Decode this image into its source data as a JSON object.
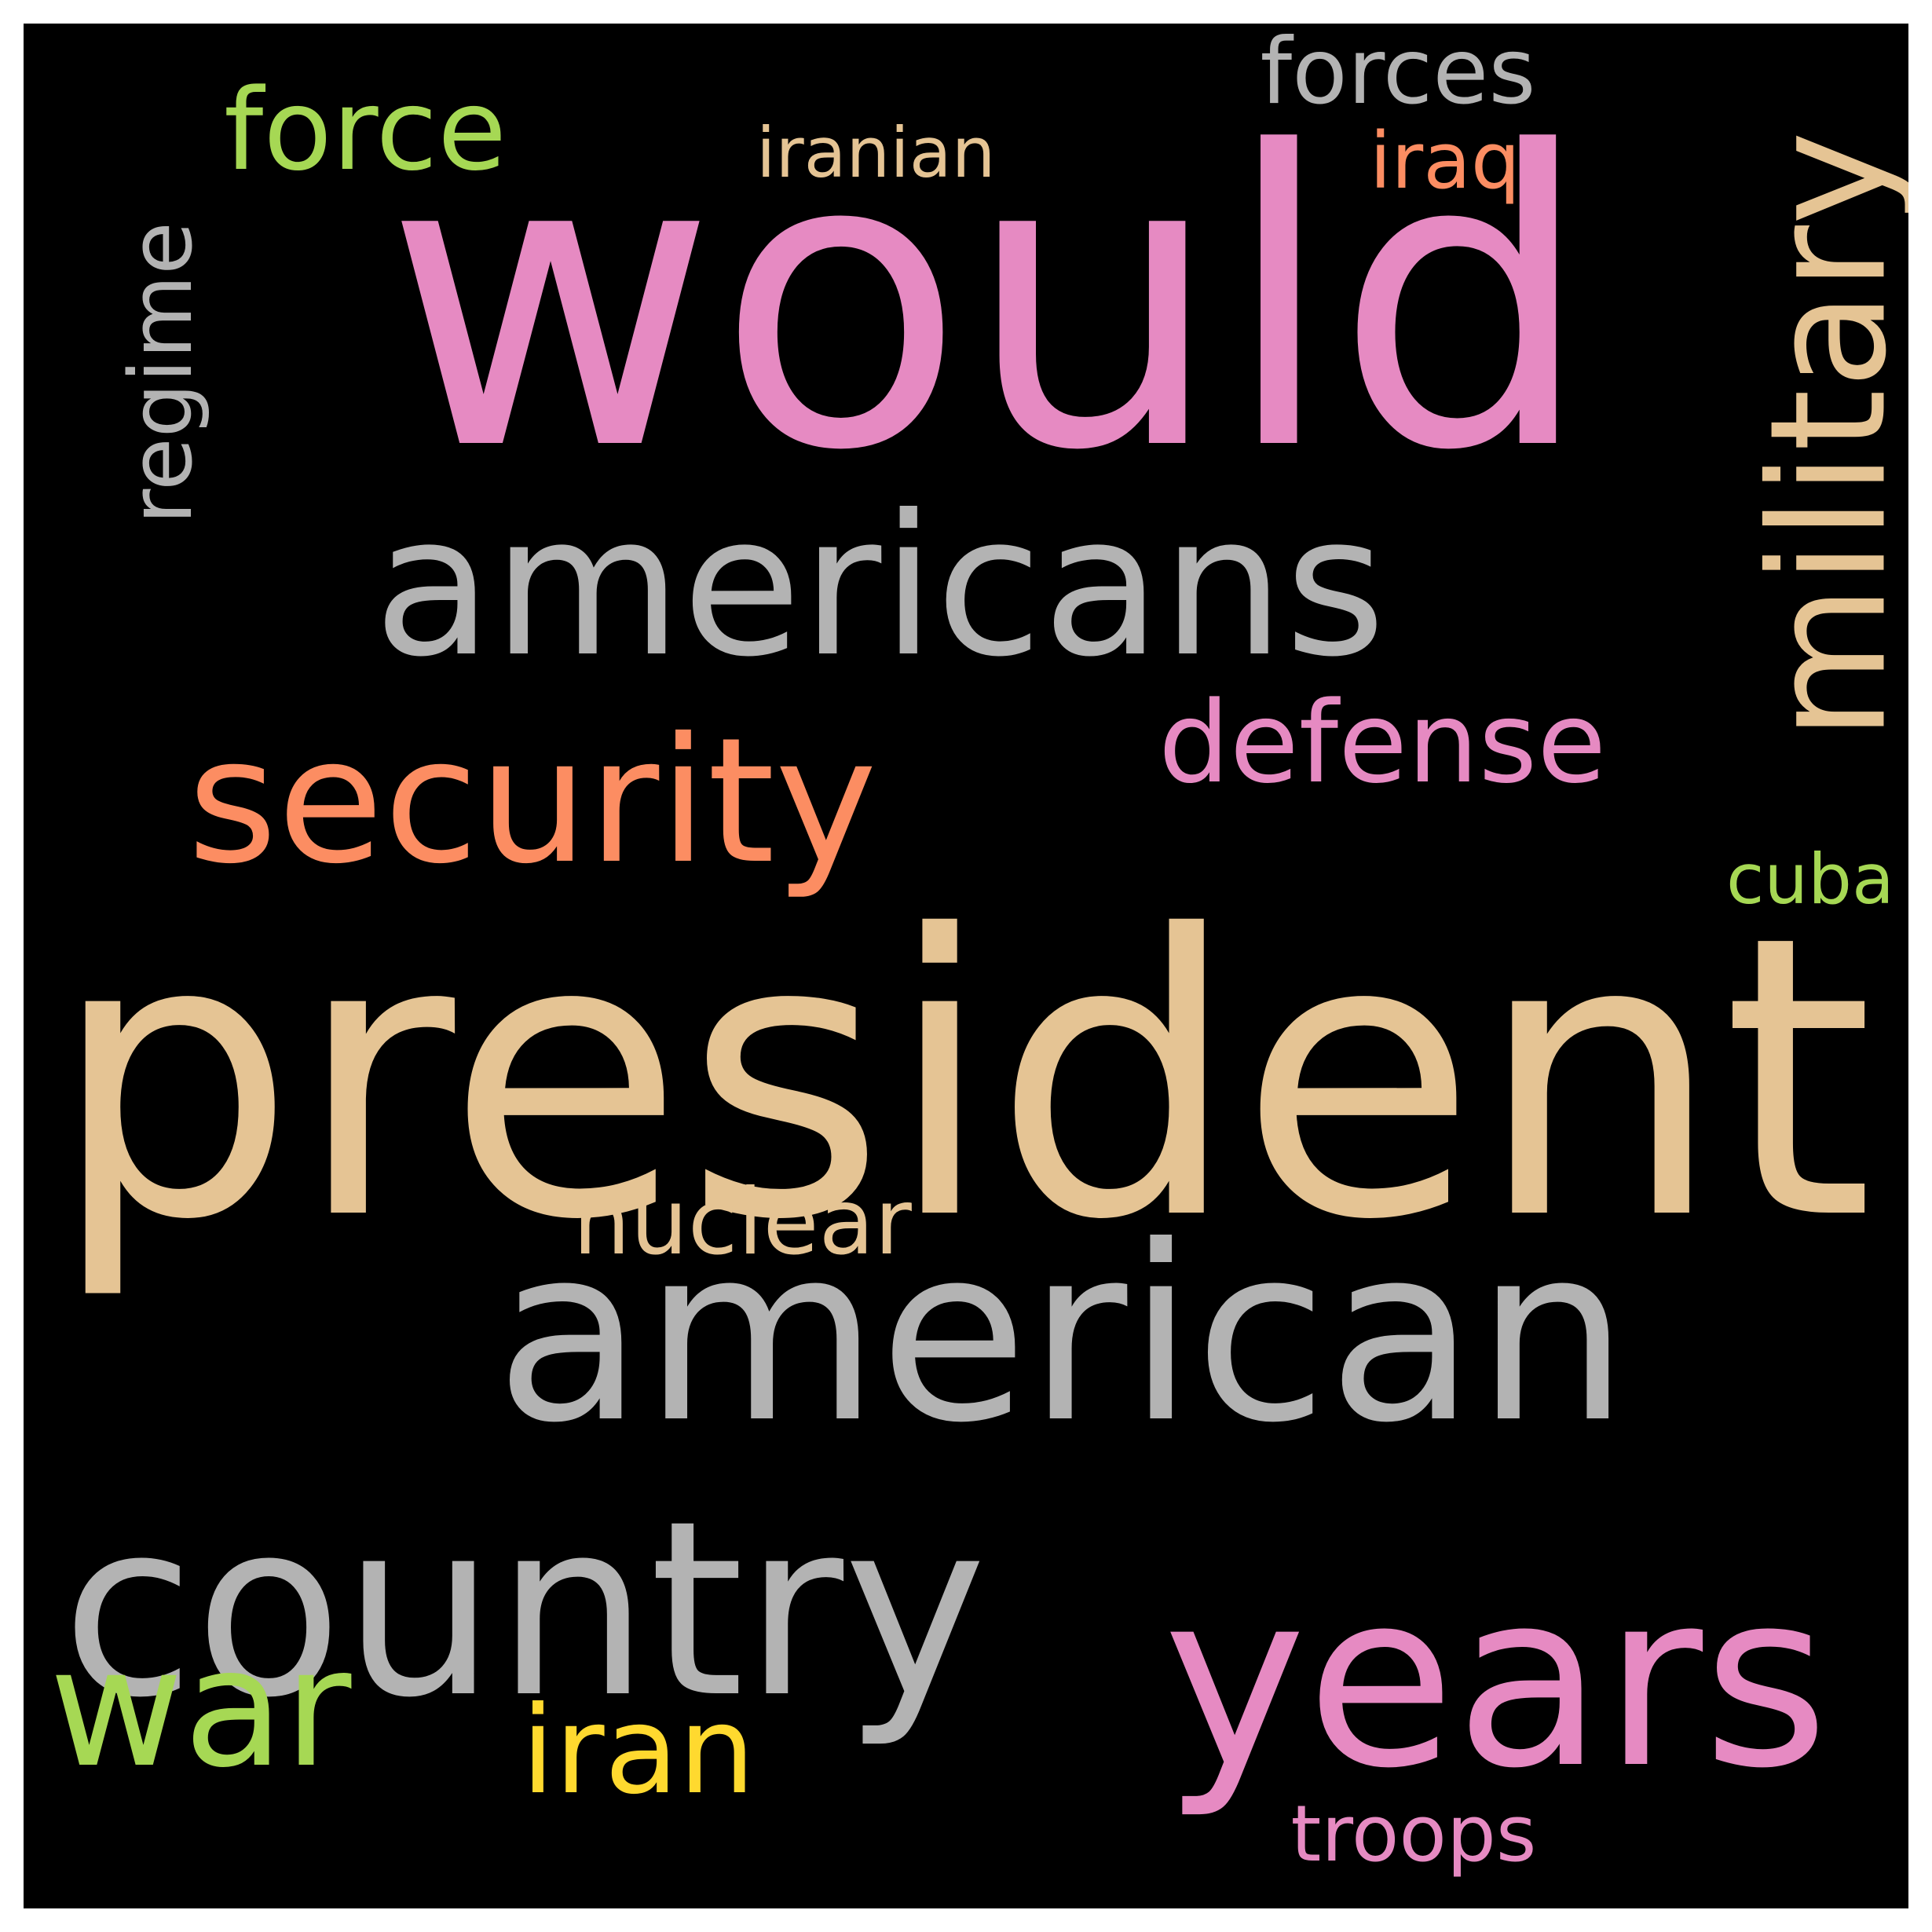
{
  "background_color": "#000000",
  "words": [
    {
      "key": "would",
      "text": "would",
      "color": "#E68AC2"
    },
    {
      "key": "president",
      "text": "president",
      "color": "#E5C494"
    },
    {
      "key": "americans",
      "text": "americans",
      "color": "#B3B3B3"
    },
    {
      "key": "american",
      "text": "american",
      "color": "#B3B3B3"
    },
    {
      "key": "country",
      "text": "country",
      "color": "#B3B3B3"
    },
    {
      "key": "years",
      "text": "years",
      "color": "#E68AC2"
    },
    {
      "key": "security",
      "text": "security",
      "color": "#FC8D62"
    },
    {
      "key": "military",
      "text": "military",
      "color": "#E5C494"
    },
    {
      "key": "force",
      "text": "force",
      "color": "#A6D854"
    },
    {
      "key": "defense",
      "text": "defense",
      "color": "#E68AC2"
    },
    {
      "key": "war",
      "text": "war",
      "color": "#A6D854"
    },
    {
      "key": "iran",
      "text": "iran",
      "color": "#FFD92F"
    },
    {
      "key": "nuclear",
      "text": "nuclear",
      "color": "#E5C494"
    },
    {
      "key": "forces",
      "text": "forces",
      "color": "#B3B3B3"
    },
    {
      "key": "iranian",
      "text": "iranian",
      "color": "#E5C494"
    },
    {
      "key": "iraq",
      "text": "iraq",
      "color": "#FC8D62"
    },
    {
      "key": "regime",
      "text": "regime",
      "color": "#B3B3B3"
    },
    {
      "key": "cuba",
      "text": "cuba",
      "color": "#A6D854"
    },
    {
      "key": "troops",
      "text": "troops",
      "color": "#E68AC2"
    }
  ]
}
